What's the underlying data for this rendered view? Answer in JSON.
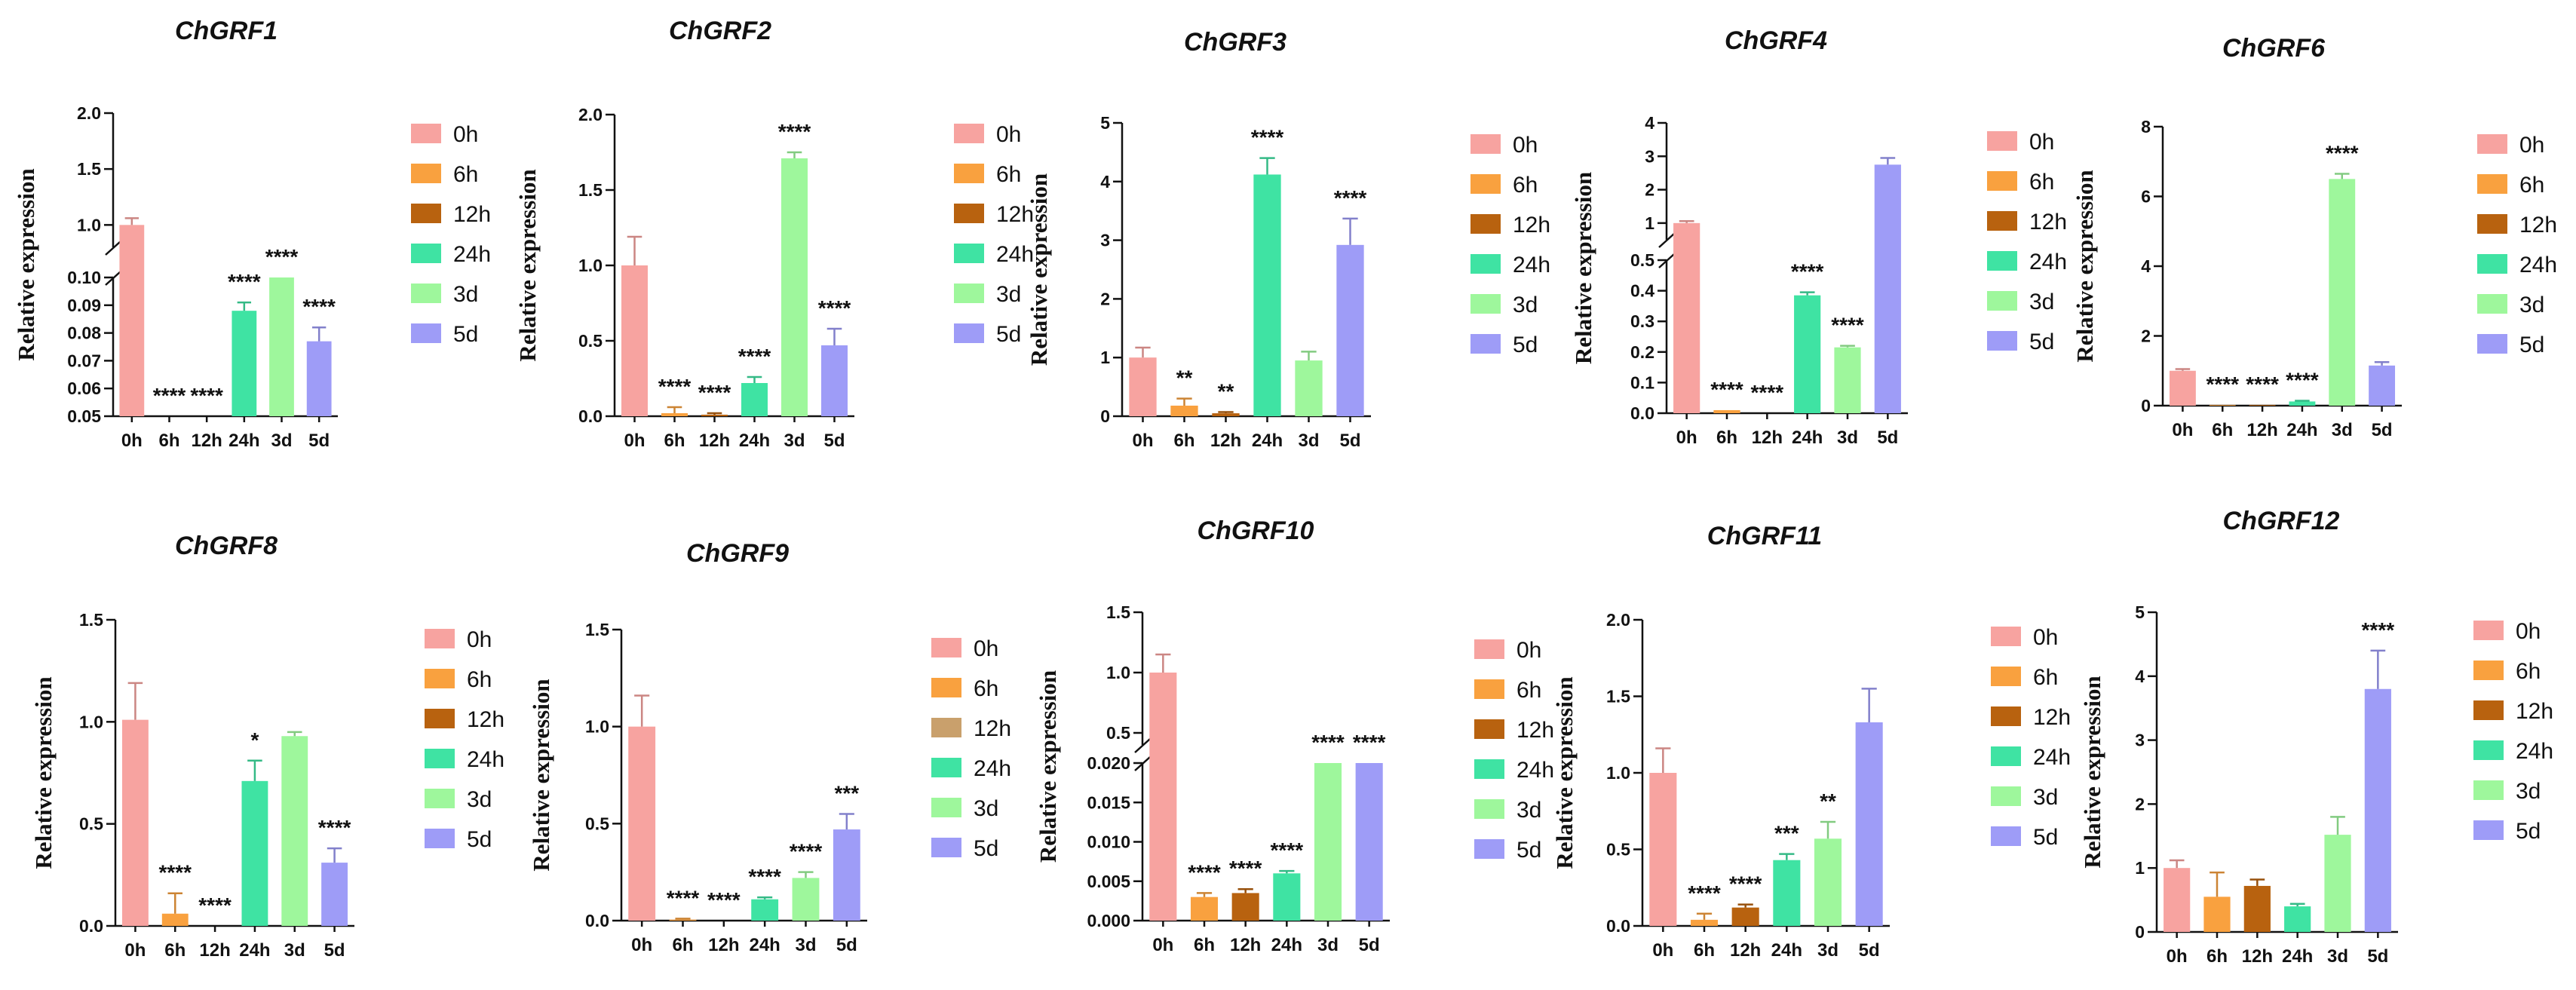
{
  "colors": {
    "0h": "#f7a3a0",
    "6h": "#f9a13f",
    "12h": "#b8620f",
    "24h": "#3fe3a3",
    "3d": "#9ef79c",
    "5d": "#9e9cf7",
    "12h_alt": "#c9a06c"
  },
  "legend_labels": [
    "0h",
    "6h",
    "12h",
    "24h",
    "3d",
    "5d"
  ],
  "chart_data": [
    {
      "type": "bar",
      "title": "ChGRF1",
      "ylabel": "Relative expression",
      "categories": [
        "0h",
        "6h",
        "12h",
        "24h",
        "3d",
        "5d"
      ],
      "values": [
        1.0,
        0.0,
        0.0,
        0.088,
        0.1,
        0.077
      ],
      "errors": [
        0.06,
        0.0,
        0.0,
        0.003,
        0.0,
        0.005
      ],
      "significance": [
        "",
        "****",
        "****",
        "****",
        "****",
        "****"
      ],
      "broken_axis": true,
      "lower_ylim": [
        0.05,
        0.1
      ],
      "lower_ticks": [
        "0.05",
        "0.06",
        "0.07",
        "0.08",
        "0.09",
        "0.10"
      ],
      "upper_ylim": [
        0.8,
        2.0
      ],
      "upper_ticks": [
        "1.0",
        "1.5",
        "2.0"
      ],
      "legend": "right"
    },
    {
      "type": "bar",
      "title": "ChGRF2",
      "ylabel": "Relative expression",
      "categories": [
        "0h",
        "6h",
        "12h",
        "24h",
        "3d",
        "5d"
      ],
      "values": [
        1.0,
        0.02,
        0.01,
        0.22,
        1.71,
        0.47
      ],
      "errors": [
        0.19,
        0.04,
        0.01,
        0.04,
        0.04,
        0.11
      ],
      "significance": [
        "",
        "****",
        "****",
        "****",
        "****",
        "****"
      ],
      "ylim": [
        0,
        2.0
      ],
      "yticks": [
        "0.0",
        "0.5",
        "1.0",
        "1.5",
        "2.0"
      ],
      "legend": "right"
    },
    {
      "type": "bar",
      "title": "ChGRF3",
      "ylabel": "Relative expression",
      "categories": [
        "0h",
        "6h",
        "12h",
        "24h",
        "3d",
        "5d"
      ],
      "values": [
        1.0,
        0.18,
        0.05,
        4.12,
        0.95,
        2.92
      ],
      "errors": [
        0.17,
        0.12,
        0.02,
        0.28,
        0.15,
        0.45
      ],
      "significance": [
        "",
        "**",
        "**",
        "****",
        "",
        "****"
      ],
      "ylim": [
        0,
        5
      ],
      "yticks": [
        "0",
        "1",
        "2",
        "3",
        "4",
        "5"
      ],
      "legend": "right"
    },
    {
      "type": "bar",
      "title": "ChGRF4",
      "ylabel": "Relative expression",
      "categories": [
        "0h",
        "6h",
        "12h",
        "24h",
        "3d",
        "5d"
      ],
      "values": [
        1.0,
        0.01,
        0.0,
        0.385,
        0.215,
        2.75
      ],
      "errors": [
        0.06,
        0.0,
        0.0,
        0.01,
        0.005,
        0.2
      ],
      "significance": [
        "",
        "****",
        "****",
        "****",
        "****",
        ""
      ],
      "broken_axis": true,
      "lower_ylim": [
        0,
        0.5
      ],
      "lower_ticks": [
        "0.0",
        "0.1",
        "0.2",
        "0.3",
        "0.4",
        "0.5"
      ],
      "upper_ylim": [
        0.5,
        4
      ],
      "upper_ticks": [
        "1",
        "2",
        "3",
        "4"
      ],
      "legend": "right"
    },
    {
      "type": "bar",
      "title": "ChGRF6",
      "ylabel": "Relative expression",
      "categories": [
        "0h",
        "6h",
        "12h",
        "24h",
        "3d",
        "5d"
      ],
      "values": [
        1.0,
        0.02,
        0.02,
        0.12,
        6.5,
        1.15
      ],
      "errors": [
        0.05,
        0.0,
        0.0,
        0.02,
        0.15,
        0.1
      ],
      "significance": [
        "",
        "****",
        "****",
        "****",
        "****",
        ""
      ],
      "ylim": [
        0,
        8
      ],
      "yticks": [
        "0",
        "2",
        "4",
        "6",
        "8"
      ],
      "legend": "right"
    },
    {
      "type": "bar",
      "title": "ChGRF8",
      "ylabel": "Relative expression",
      "categories": [
        "0h",
        "6h",
        "12h",
        "24h",
        "3d",
        "5d"
      ],
      "values": [
        1.01,
        0.06,
        0.0,
        0.71,
        0.93,
        0.31
      ],
      "errors": [
        0.18,
        0.1,
        0.0,
        0.1,
        0.02,
        0.07
      ],
      "significance": [
        "",
        "****",
        "****",
        "*",
        "",
        "****"
      ],
      "ylim": [
        0,
        1.5
      ],
      "yticks": [
        "0.0",
        "0.5",
        "1.0",
        "1.5"
      ],
      "legend": "right"
    },
    {
      "type": "bar",
      "title": "ChGRF9",
      "ylabel": "Relative expression",
      "categories": [
        "0h",
        "6h",
        "12h",
        "24h",
        "3d",
        "5d"
      ],
      "values": [
        1.0,
        0.005,
        0.0,
        0.11,
        0.22,
        0.47
      ],
      "errors": [
        0.16,
        0.005,
        0.0,
        0.01,
        0.03,
        0.08
      ],
      "significance": [
        "",
        "****",
        "****",
        "****",
        "****",
        "***"
      ],
      "ylim": [
        0,
        1.5
      ],
      "yticks": [
        "0.0",
        "0.5",
        "1.0",
        "1.5"
      ],
      "legend": "right"
    },
    {
      "type": "bar",
      "title": "ChGRF10",
      "ylabel": "Relative expression",
      "categories": [
        "0h",
        "6h",
        "12h",
        "24h",
        "3d",
        "5d"
      ],
      "values": [
        1.0,
        0.003,
        0.0035,
        0.006,
        0.02,
        0.02
      ],
      "errors": [
        0.15,
        0.0005,
        0.0005,
        0.0003,
        0.0,
        0.0
      ],
      "significance": [
        "",
        "****",
        "****",
        "****",
        "****",
        "****"
      ],
      "broken_axis": true,
      "lower_ylim": [
        0,
        0.02
      ],
      "lower_ticks": [
        "0.000",
        "0.005",
        "0.010",
        "0.015",
        "0.020"
      ],
      "upper_ylim": [
        0.4,
        1.5
      ],
      "upper_ticks": [
        "0.5",
        "1.0",
        "1.5"
      ],
      "legend": "right"
    },
    {
      "type": "bar",
      "title": "ChGRF11",
      "ylabel": "Relative expression",
      "categories": [
        "0h",
        "6h",
        "12h",
        "24h",
        "3d",
        "5d"
      ],
      "values": [
        1.0,
        0.04,
        0.12,
        0.43,
        0.57,
        1.33
      ],
      "errors": [
        0.16,
        0.04,
        0.02,
        0.04,
        0.11,
        0.22
      ],
      "significance": [
        "",
        "****",
        "****",
        "***",
        "**",
        ""
      ],
      "ylim": [
        0,
        2.0
      ],
      "yticks": [
        "0.0",
        "0.5",
        "1.0",
        "1.5",
        "2.0"
      ],
      "legend": "right"
    },
    {
      "type": "bar",
      "title": "ChGRF12",
      "ylabel": "Relative expression",
      "categories": [
        "0h",
        "6h",
        "12h",
        "24h",
        "3d",
        "5d"
      ],
      "values": [
        1.0,
        0.55,
        0.72,
        0.4,
        1.52,
        3.8
      ],
      "errors": [
        0.12,
        0.38,
        0.1,
        0.04,
        0.28,
        0.6
      ],
      "significance": [
        "",
        "",
        "",
        "",
        "",
        "****"
      ],
      "ylim": [
        0,
        5
      ],
      "yticks": [
        "0",
        "1",
        "2",
        "3",
        "4",
        "5"
      ],
      "legend": "right"
    }
  ]
}
